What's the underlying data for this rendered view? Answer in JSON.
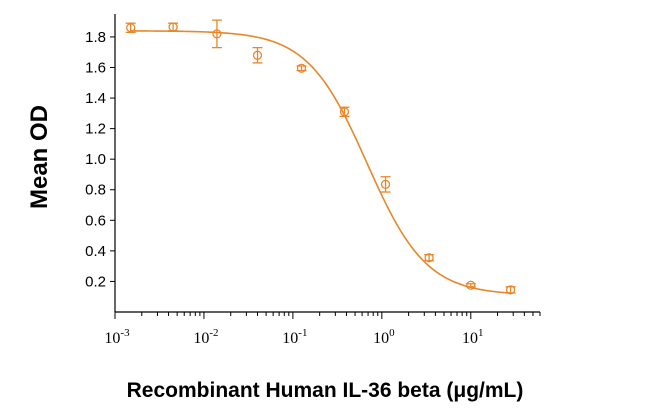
{
  "chart_data": {
    "type": "scatter",
    "title": "",
    "xlabel": "Recombinant Human IL-36 beta (μg/mL)",
    "ylabel": "Mean OD",
    "xscale": "log",
    "xlim": [
      0.001,
      60
    ],
    "ylim": [
      0.0,
      1.95
    ],
    "yticks": [
      "0.2",
      "0.4",
      "0.6",
      "0.8",
      "1.0",
      "1.2",
      "1.4",
      "1.6",
      "1.8"
    ],
    "xticks": [
      {
        "base": "10",
        "exp": "-3"
      },
      {
        "base": "10",
        "exp": "-2"
      },
      {
        "base": "10",
        "exp": "-1"
      },
      {
        "base": "10",
        "exp": "0"
      },
      {
        "base": "10",
        "exp": "1"
      }
    ],
    "series": [
      {
        "name": "Mean OD",
        "color": "#E8872A",
        "x": [
          0.0015,
          0.0045,
          0.014,
          0.04,
          0.125,
          0.38,
          1.1,
          3.4,
          10,
          28
        ],
        "y": [
          1.86,
          1.865,
          1.82,
          1.68,
          1.595,
          1.31,
          0.835,
          0.355,
          0.175,
          0.145
        ],
        "err": [
          0.03,
          0.025,
          0.09,
          0.05,
          0.015,
          0.03,
          0.05,
          0.02,
          0.01,
          0.02
        ]
      }
    ],
    "fit": {
      "type": "4PL",
      "top": 1.84,
      "bottom": 0.11,
      "ec50": 0.68,
      "hill": 1.3,
      "color": "#E8872A"
    }
  }
}
